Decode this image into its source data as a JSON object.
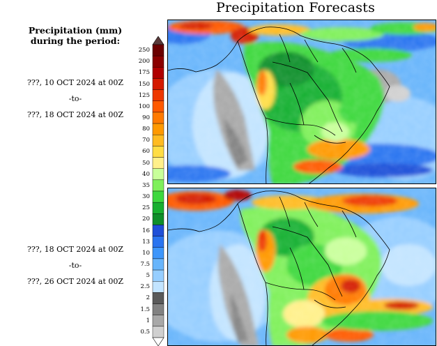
{
  "title": "Precipitation Forecasts",
  "legend": {
    "units_line1": "Precipitation (mm)",
    "units_line2": "during the period:",
    "labels": [
      "250",
      "200",
      "175",
      "150",
      "125",
      "100",
      "90",
      "80",
      "70",
      "60",
      "50",
      "40",
      "35",
      "30",
      "25",
      "20",
      "16",
      "13",
      "10",
      "7.5",
      "5",
      "2.5",
      "2",
      "1.5",
      "1",
      "0.5"
    ],
    "colors": [
      "#6b0000",
      "#8b0000",
      "#b00000",
      "#d41a00",
      "#ee3800",
      "#ff5a00",
      "#ff7a00",
      "#ff9900",
      "#ffbb22",
      "#ffdd44",
      "#fff08a",
      "#c8ff9a",
      "#7ff05a",
      "#3ed83e",
      "#18b030",
      "#0f8f2a",
      "#1f4fd8",
      "#2a74f0",
      "#3d96fb",
      "#68b5fb",
      "#96ceff",
      "#c2e4ff",
      "#5a5a5a",
      "#828282",
      "#a8a8a8",
      "#d0d0d0"
    ]
  },
  "periods": [
    {
      "start": "???, 10 OCT 2024 at 00Z",
      "sep": "-to-",
      "end": "???, 18 OCT 2024 at 00Z"
    },
    {
      "start": "???, 18 OCT 2024 at 00Z",
      "sep": "-to-",
      "end": "???, 26 OCT 2024 at 00Z"
    }
  ],
  "maps": [
    {
      "name": "forecast-map-1",
      "region": "South America"
    },
    {
      "name": "forecast-map-2",
      "region": "South America"
    }
  ]
}
